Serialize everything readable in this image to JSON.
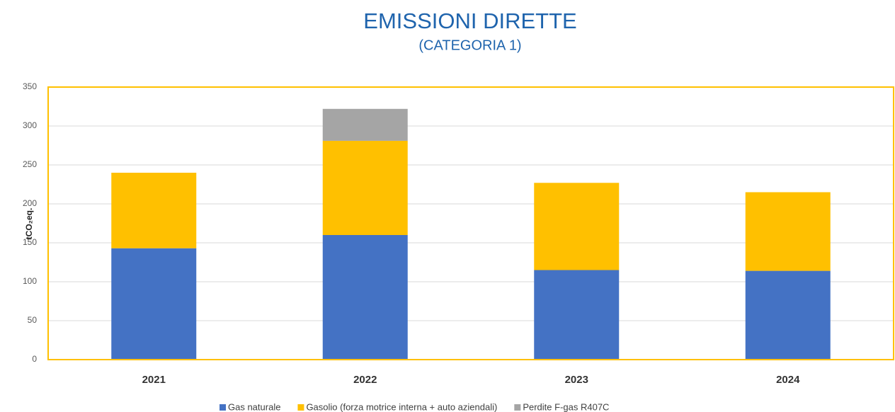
{
  "chart_data": {
    "type": "stacked_bar",
    "title": "EMISSIONI DIRETTE",
    "subtitle": "(CATEGORIA 1)",
    "y_label": "tCO₂eq.",
    "categories": [
      "2021",
      "2022",
      "2023",
      "2024"
    ],
    "series": [
      {
        "name": "Gas naturale",
        "color": "#4472c4",
        "values": [
          143,
          160,
          115,
          114
        ]
      },
      {
        "name": "Gasolio (forza motrice interna + auto aziendali)",
        "color": "#ffc000",
        "values": [
          97,
          121,
          112,
          101
        ]
      },
      {
        "name": "Perdite F-gas R407C",
        "color": "#a5a5a5",
        "values": [
          0,
          41,
          0,
          0
        ]
      }
    ],
    "ylim": [
      0,
      350
    ],
    "yticks": [
      0,
      50,
      100,
      150,
      200,
      250,
      300,
      350
    ],
    "grid": true
  }
}
